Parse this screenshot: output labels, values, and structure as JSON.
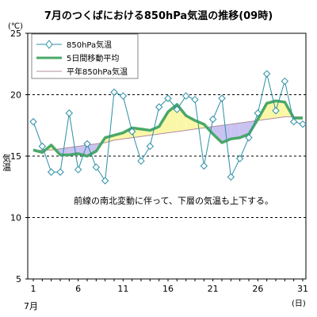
{
  "chart_data": {
    "type": "line",
    "title": "7月のつくばにおける850hPa気温の推移(09時)",
    "ylabel_unit": "(℃)",
    "ylabel": "気温",
    "xlabel_unit": "(日)",
    "month_label": "7月",
    "ylim": [
      5,
      25
    ],
    "xlim": [
      1,
      31
    ],
    "y_ticks": [
      5,
      10,
      15,
      20,
      25
    ],
    "x_ticks": [
      1,
      6,
      11,
      16,
      21,
      26,
      31
    ],
    "dashed_gridlines_y": [
      10,
      15,
      20
    ],
    "legend_position": "top-left",
    "annotation": "前線の南北変動に伴って、下層の気温も上下する。",
    "x": [
      1,
      2,
      3,
      4,
      5,
      6,
      7,
      8,
      9,
      10,
      11,
      12,
      13,
      14,
      15,
      16,
      17,
      18,
      19,
      20,
      21,
      22,
      23,
      24,
      25,
      26,
      27,
      28,
      29,
      30,
      31
    ],
    "series": [
      {
        "name": "850hPa気温",
        "color": "#2b8fa6",
        "marker": "diamond",
        "values": [
          17.8,
          15.8,
          13.7,
          13.7,
          18.5,
          13.9,
          16.0,
          14.1,
          13.0,
          20.2,
          19.9,
          17.0,
          14.6,
          15.8,
          19.0,
          19.7,
          18.8,
          19.9,
          19.6,
          14.2,
          18.0,
          19.7,
          13.3,
          14.8,
          16.5,
          18.5,
          21.7,
          18.7,
          21.1,
          17.8,
          17.6
        ]
      },
      {
        "name": "5日間移動平均",
        "color": "#4aa868",
        "values": [
          15.5,
          15.3,
          15.9,
          15.1,
          15.1,
          15.2,
          15.0,
          15.4,
          16.5,
          16.7,
          16.9,
          17.3,
          17.2,
          17.1,
          17.4,
          18.6,
          19.2,
          18.3,
          17.9,
          17.6,
          16.8,
          16.1,
          16.4,
          16.5,
          16.8,
          18.0,
          19.3,
          19.5,
          19.4,
          18.1,
          18.1
        ]
      },
      {
        "name": "平年850hPa気温",
        "color": "#b08ca0",
        "values": [
          15.4,
          15.5,
          15.5,
          15.6,
          15.7,
          15.8,
          15.9,
          16.0,
          16.1,
          16.3,
          16.4,
          16.5,
          16.6,
          16.7,
          16.8,
          16.9,
          17.0,
          17.1,
          17.2,
          17.3,
          17.4,
          17.5,
          17.6,
          17.7,
          17.8,
          17.9,
          18.0,
          18.1,
          18.2,
          18.2,
          18.2
        ]
      }
    ],
    "fill_above_normal_color": "#fbf7a8",
    "fill_below_normal_color": "#c9c3f2"
  }
}
